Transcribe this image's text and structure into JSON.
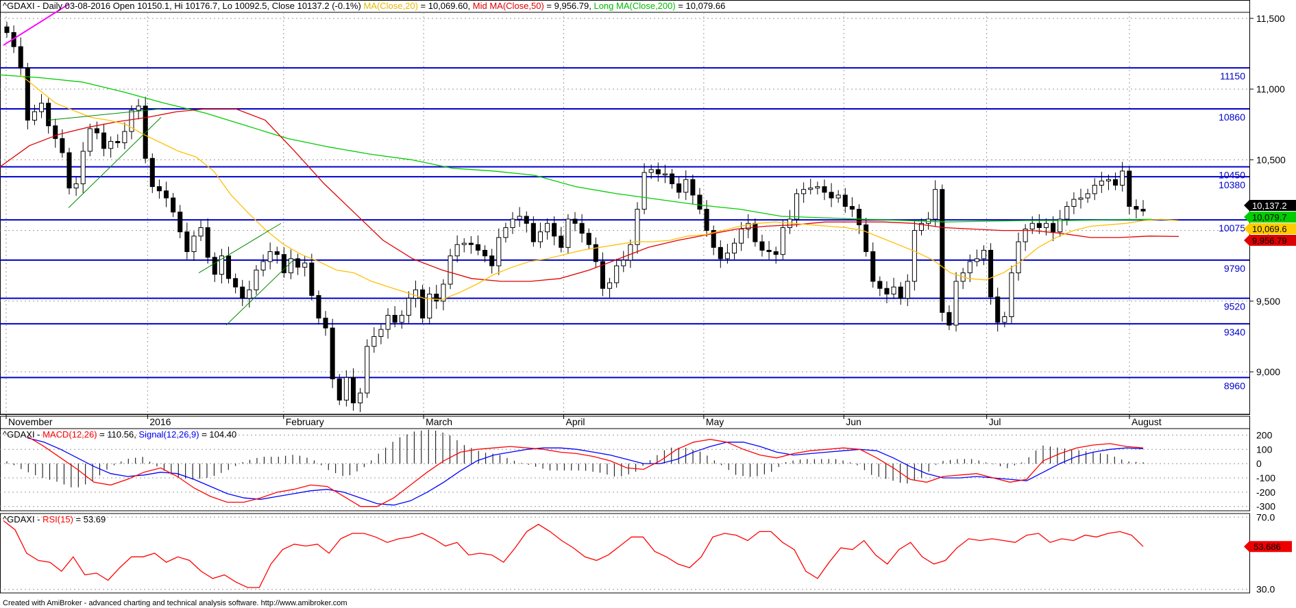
{
  "chart_data": [
    {
      "type": "candlestick",
      "panel": "price",
      "symbol": "^GDAXI",
      "title": {
        "symbol": "^GDAXI",
        "desc": " - Daily 03-08-2016 Open 10150.1, Hi 10176.7, Lo 10092.5, Close 10137.2 (-0.1%) ",
        "ma20_label": "MA(Close,20)",
        "ma20_value": " = 10,069.60, ",
        "ma50_label": "Mid MA(Close,50)",
        "ma50_value": " = 9,956.79, ",
        "ma200_label": "Long MA(Close,200)",
        "ma200_value": " = 10,079.66"
      },
      "ylim": [
        8700,
        11630
      ],
      "y_ticks": [
        "11,500",
        "11,000",
        "10,500",
        "10,000",
        "9,500",
        "9,000"
      ],
      "x_labels": [
        "November",
        "2016",
        "February",
        "March",
        "April",
        "May",
        "Jun",
        "Jul",
        "August"
      ],
      "horizontal_levels": [
        {
          "value": 11150,
          "label": "11150"
        },
        {
          "value": 10860,
          "label": "10860"
        },
        {
          "value": 10450,
          "label": "10450"
        },
        {
          "value": 10380,
          "label": "10380"
        },
        {
          "value": 10075,
          "label": "10075"
        },
        {
          "value": 9790,
          "label": "9790"
        },
        {
          "value": 9520,
          "label": "9520"
        },
        {
          "value": 9340,
          "label": "9340"
        },
        {
          "value": 8960,
          "label": "8960"
        }
      ],
      "price_tags": [
        {
          "label": "10,137.2",
          "value": 10137.2,
          "color": "#000000"
        },
        {
          "label": "10,079.7",
          "value": 10079.7,
          "color": "#00cc00"
        },
        {
          "label": "10,069.6",
          "value": 10069.6,
          "color": "#ffcc00"
        },
        {
          "label": "9,956.79",
          "value": 9956.79,
          "color": "#dd0000"
        }
      ],
      "close_series": [
        11400,
        11300,
        11150,
        10780,
        10840,
        10900,
        10740,
        10650,
        10550,
        10300,
        10330,
        10560,
        10720,
        10690,
        10580,
        10630,
        10620,
        10700,
        10850,
        10880,
        10510,
        10310,
        10280,
        10230,
        10130,
        9990,
        9850,
        9960,
        10020,
        9810,
        9690,
        9820,
        9660,
        9600,
        9520,
        9580,
        9720,
        9780,
        9850,
        9830,
        9700,
        9800,
        9740,
        9770,
        9540,
        9380,
        9310,
        8950,
        8800,
        8960,
        8780,
        8850,
        9180,
        9250,
        9300,
        9400,
        9350,
        9400,
        9520,
        9580,
        9380,
        9550,
        9500,
        9620,
        9820,
        9900,
        9910,
        9900,
        9860,
        9820,
        9750,
        9950,
        10020,
        10080,
        10100,
        10050,
        9920,
        9990,
        10050,
        9960,
        9880,
        10080,
        10050,
        9980,
        9900,
        9780,
        9590,
        9630,
        9750,
        9790,
        9900,
        10150,
        10410,
        10430,
        10400,
        10400,
        10330,
        10270,
        10360,
        10250,
        10150,
        10000,
        9880,
        9800,
        9840,
        9910,
        10010,
        10050,
        9920,
        9860,
        9850,
        9830,
        10020,
        10080,
        10260,
        10290,
        10300,
        10310,
        10270,
        10230,
        10250,
        10170,
        10150,
        10040,
        9850,
        9640,
        9590,
        9550,
        9600,
        9520,
        9640,
        10000,
        10050,
        10080,
        10290,
        9420,
        9330,
        9640,
        9700,
        9780,
        9800,
        9860,
        9530,
        9350,
        9390,
        9700,
        9920,
        10010,
        10050,
        10020,
        10050,
        9990,
        10080,
        10170,
        10220,
        10230,
        10260,
        10320,
        10350,
        10360,
        10320,
        10420,
        10170,
        10150,
        10137
      ],
      "ma20": [
        11100,
        11000,
        10900,
        10850,
        10800,
        10780,
        10750,
        10680,
        10620,
        10560,
        10520,
        10420,
        10250,
        10120,
        10000,
        9900,
        9830,
        9780,
        9720,
        9700,
        9640,
        9600,
        9560,
        9520,
        9510,
        9560,
        9620,
        9690,
        9740,
        9780,
        9800,
        9830,
        9860,
        9880,
        9900,
        9920,
        9920,
        9930,
        9960,
        9970,
        10000,
        10030,
        10050,
        10060,
        10050,
        10040,
        10030,
        10020,
        10000,
        9950,
        9900,
        9850,
        9790,
        9700,
        9660,
        9650,
        9700,
        9780,
        9880,
        9950,
        10000,
        10030,
        10040,
        10050,
        10070,
        10079,
        10069
      ],
      "ma50": [
        10450,
        10600,
        10680,
        10730,
        10770,
        10800,
        10840,
        10860,
        10860,
        10780,
        10560,
        10330,
        10130,
        9930,
        9800,
        9720,
        9660,
        9640,
        9640,
        9660,
        9720,
        9800,
        9880,
        9930,
        9970,
        10010,
        10030,
        10040,
        10060,
        10060,
        10060,
        10050,
        10020,
        10010,
        10000,
        10000,
        9980,
        9950,
        9950,
        9960,
        9957
      ],
      "ma200": [
        11100,
        11080,
        11050,
        10980,
        10900,
        10830,
        10740,
        10650,
        10590,
        10540,
        10500,
        10440,
        10420,
        10390,
        10310,
        10260,
        10220,
        10180,
        10150,
        10100,
        10090,
        10080,
        10070,
        10060,
        10065,
        10070,
        10070,
        10075,
        10079
      ]
    },
    {
      "type": "line",
      "panel": "macd",
      "title": {
        "symbol": "^GDAXI - ",
        "macd_label": "MACD(12,26)",
        "macd_value": " = 110.56, ",
        "signal_label": "Signal(12,26,9)",
        "signal_value": " = 104.40"
      },
      "ylim": [
        -330,
        245
      ],
      "y_ticks": [
        "200",
        "100",
        "0",
        "-100",
        "-200",
        "-300"
      ],
      "series": [
        {
          "name": "MACD(12,26)",
          "color": "#ff0000",
          "values": [
            190,
            120,
            40,
            -40,
            -130,
            -150,
            -110,
            -60,
            -30,
            -90,
            -170,
            -230,
            -270,
            -270,
            -240,
            -200,
            -180,
            -150,
            -160,
            -230,
            -300,
            -300,
            -240,
            -150,
            -60,
            20,
            80,
            100,
            110,
            120,
            110,
            100,
            80,
            70,
            50,
            20,
            -30,
            -40,
            20,
            100,
            150,
            170,
            150,
            100,
            60,
            40,
            70,
            90,
            100,
            110,
            100,
            40,
            -30,
            -110,
            -130,
            -90,
            -80,
            -70,
            -100,
            -130,
            -110,
            20,
            70,
            110,
            130,
            140,
            120,
            110
          ]
        },
        {
          "name": "Signal(12,26,9)",
          "color": "#0000ff",
          "values": [
            180,
            150,
            100,
            40,
            -20,
            -70,
            -90,
            -80,
            -60,
            -70,
            -110,
            -160,
            -210,
            -240,
            -250,
            -230,
            -210,
            -190,
            -180,
            -200,
            -240,
            -280,
            -290,
            -260,
            -200,
            -130,
            -50,
            20,
            60,
            80,
            100,
            110,
            110,
            100,
            80,
            60,
            30,
            0,
            0,
            30,
            80,
            120,
            150,
            150,
            120,
            80,
            60,
            70,
            80,
            90,
            100,
            90,
            40,
            -20,
            -70,
            -100,
            -100,
            -90,
            -100,
            -110,
            -120,
            -60,
            0,
            50,
            80,
            100,
            110,
            104
          ]
        }
      ]
    },
    {
      "type": "line",
      "panel": "rsi",
      "title": {
        "symbol": "^GDAXI - ",
        "rsi_label": "RSI(15)",
        "rsi_value": " = 53.69"
      },
      "ylim": [
        28,
        72
      ],
      "y_ticks": [
        "70.0",
        "30.0"
      ],
      "value_tag": "53.686",
      "series": [
        {
          "name": "RSI(15)",
          "color": "#ff0000",
          "values": [
            68,
            63,
            50,
            46,
            45,
            40,
            48,
            38,
            39,
            35,
            42,
            48,
            48,
            50,
            45,
            48,
            46,
            40,
            36,
            38,
            34,
            31,
            31,
            44,
            52,
            55,
            54,
            55,
            50,
            58,
            61,
            61,
            59,
            56,
            58,
            59,
            61,
            58,
            54,
            56,
            49,
            50,
            49,
            45,
            53,
            62,
            66,
            62,
            57,
            53,
            48,
            46,
            49,
            54,
            59,
            59,
            51,
            48,
            44,
            42,
            48,
            59,
            61,
            60,
            57,
            62,
            62,
            56,
            52,
            40,
            36,
            45,
            53,
            52,
            57,
            49,
            44,
            52,
            56,
            48,
            44,
            46,
            53,
            58,
            57,
            58,
            57,
            56,
            60,
            61,
            56,
            58,
            57,
            60,
            59,
            61,
            62,
            60,
            53.7
          ]
        }
      ]
    }
  ],
  "footer": {
    "credit": "Created with AmiBroker - advanced charting and technical analysis software. http://www.amibroker.com"
  }
}
